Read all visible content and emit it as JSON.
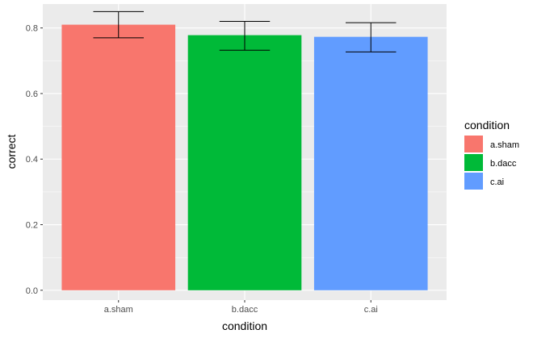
{
  "chart_data": {
    "type": "bar",
    "title": "",
    "xlabel": "condition",
    "ylabel": "correct",
    "ylim": [
      -0.03,
      0.873
    ],
    "yticks": [
      "0.0",
      "0.2",
      "0.4",
      "0.6",
      "0.8"
    ],
    "ytick_values": [
      0.0,
      0.2,
      0.4,
      0.6,
      0.8
    ],
    "categories": [
      "a.sham",
      "b.dacc",
      "c.ai"
    ],
    "values": [
      0.81,
      0.778,
      0.773
    ],
    "error_low": [
      0.77,
      0.732,
      0.727
    ],
    "error_high": [
      0.85,
      0.82,
      0.816
    ],
    "colors": [
      "#F8766D",
      "#00BA38",
      "#619CFF"
    ],
    "grid": true,
    "legend": {
      "title": "condition",
      "position": "right",
      "entries": [
        "a.sham",
        "b.dacc",
        "c.ai"
      ]
    }
  }
}
